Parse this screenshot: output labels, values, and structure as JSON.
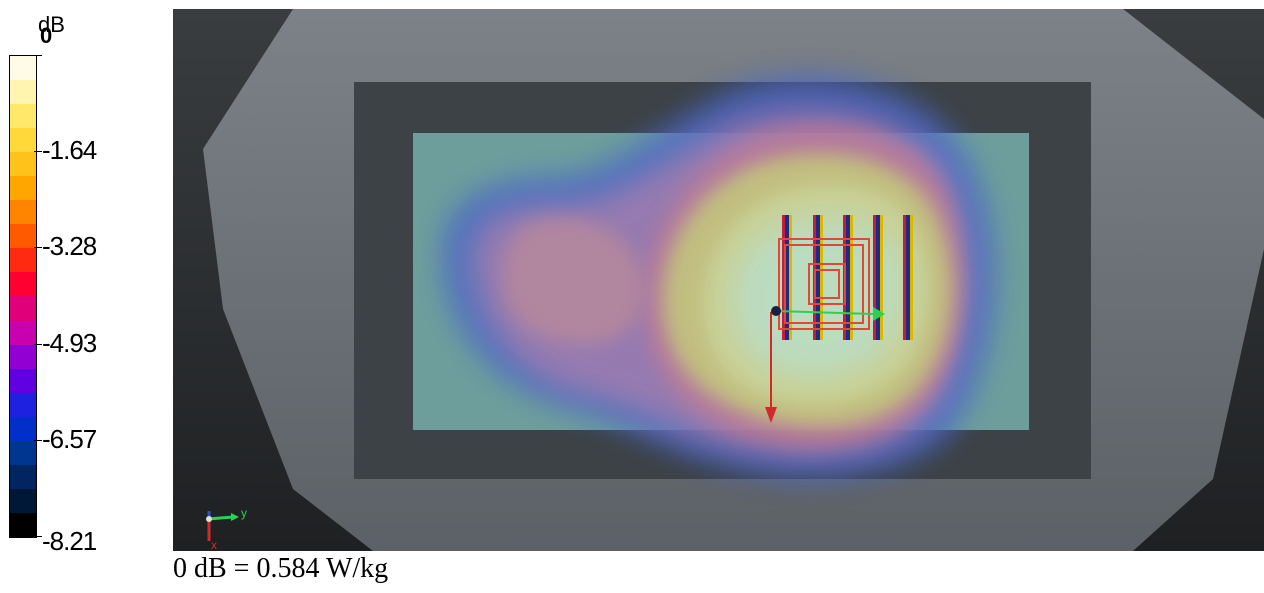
{
  "legend": {
    "unit": "dB",
    "ticks": [
      {
        "label": "0",
        "value": 0
      },
      {
        "label": "-1.64",
        "value": -1.64
      },
      {
        "label": "-3.28",
        "value": -3.28
      },
      {
        "label": "-4.93",
        "value": -4.93
      },
      {
        "label": "-6.57",
        "value": -6.57
      },
      {
        "label": "-8.21",
        "value": -8.21
      }
    ],
    "colors": [
      "#fffbe6",
      "#fff4b0",
      "#ffe86a",
      "#ffd83a",
      "#ffc21a",
      "#ffa600",
      "#ff8400",
      "#ff5a00",
      "#ff2a10",
      "#ff0030",
      "#e0007a",
      "#c800b0",
      "#9000d0",
      "#6000e0",
      "#2020e0",
      "#0030c8",
      "#003590",
      "#002560",
      "#001838",
      "#000000"
    ]
  },
  "viewport": {
    "axis_triad": {
      "y_label": "y",
      "x_label": "x"
    }
  },
  "caption": "0 dB = 0.584 W/kg"
}
